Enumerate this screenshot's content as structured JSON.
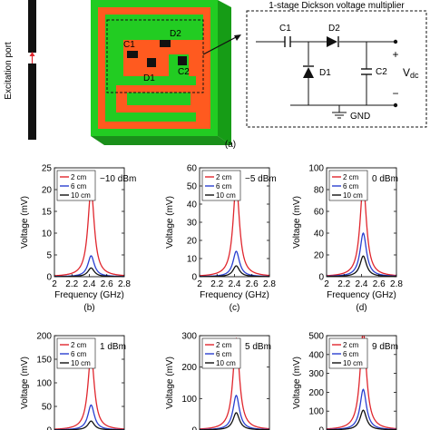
{
  "figure": {
    "top": {
      "port_label": "Excitation port",
      "panel_label": "(a)",
      "labels": {
        "c1": "C1",
        "c2": "C2",
        "d1": "D1",
        "d2": "D2"
      },
      "schematic": {
        "title": "1-stage Dickson voltage multiplier",
        "c1": "C1",
        "d2": "D2",
        "d1": "D1",
        "c2": "C2",
        "plus": "+",
        "minus": "−",
        "vdc": "V",
        "vdc_sub": "dc",
        "gnd": "GND"
      }
    },
    "colors": {
      "2cm": "#e0262d",
      "6cm": "#2a3fd0",
      "10cm": "#111111",
      "board_green": "#22cc22",
      "board_orange": "#ff5a1f"
    }
  },
  "chart_data": [
    {
      "type": "line",
      "panel": "(b)",
      "power": "−10 dBm",
      "ylabel": "Voltage (mV)",
      "xlabel": "Frequency (GHz)",
      "xlim": [
        2,
        2.8
      ],
      "ylim": [
        0,
        25
      ],
      "xticks": [
        "2",
        "2.2",
        "2.4",
        "2.6",
        "2.8"
      ],
      "yticks": [
        "0",
        "5",
        "10",
        "15",
        "20",
        "25"
      ],
      "x0": 2.42,
      "series": [
        {
          "name": "2 cm",
          "peak": 20,
          "color": "#e0262d"
        },
        {
          "name": "6 cm",
          "peak": 4.8,
          "color": "#2a3fd0"
        },
        {
          "name": "10 cm",
          "peak": 2,
          "color": "#111111"
        }
      ]
    },
    {
      "type": "line",
      "panel": "(c)",
      "power": "−5 dBm",
      "ylabel": "Voltage (mV)",
      "xlabel": "Frequency (GHz)",
      "xlim": [
        2,
        2.8
      ],
      "ylim": [
        0,
        60
      ],
      "xticks": [
        "2",
        "2.2",
        "2.4",
        "2.6",
        "2.8"
      ],
      "yticks": [
        "0",
        "10",
        "20",
        "30",
        "40",
        "50",
        "60"
      ],
      "x0": 2.42,
      "series": [
        {
          "name": "2 cm",
          "peak": 51,
          "color": "#e0262d"
        },
        {
          "name": "6 cm",
          "peak": 14,
          "color": "#2a3fd0"
        },
        {
          "name": "10 cm",
          "peak": 6,
          "color": "#111111"
        }
      ]
    },
    {
      "type": "line",
      "panel": "(d)",
      "power": "0 dBm",
      "ylabel": "Voltage (mV)",
      "xlabel": "Frequency (GHz)",
      "xlim": [
        2,
        2.8
      ],
      "ylim": [
        0,
        100
      ],
      "xticks": [
        "2",
        "2.2",
        "2.4",
        "2.6",
        "2.8"
      ],
      "yticks": [
        "0",
        "20",
        "40",
        "60",
        "80",
        "100"
      ],
      "x0": 2.42,
      "series": [
        {
          "name": "2 cm",
          "peak": 85,
          "color": "#e0262d"
        },
        {
          "name": "6 cm",
          "peak": 40,
          "color": "#2a3fd0"
        },
        {
          "name": "10 cm",
          "peak": 19,
          "color": "#111111"
        }
      ]
    },
    {
      "type": "line",
      "power": "1 dBm",
      "ylabel": "Voltage (mV)",
      "xlim": [
        2,
        2.8
      ],
      "ylim": [
        0,
        200
      ],
      "yticks": [
        "0",
        "50",
        "100",
        "150",
        "200"
      ],
      "x0": 2.42,
      "series": [
        {
          "name": "2 cm",
          "peak": 160,
          "color": "#e0262d"
        },
        {
          "name": "6 cm",
          "peak": 53,
          "color": "#2a3fd0"
        },
        {
          "name": "10 cm",
          "peak": 19,
          "color": "#111111"
        }
      ]
    },
    {
      "type": "line",
      "power": "5 dBm",
      "ylabel": "Voltage (mV)",
      "xlim": [
        2,
        2.8
      ],
      "ylim": [
        0,
        300
      ],
      "yticks": [
        "0",
        "100",
        "200",
        "300"
      ],
      "x0": 2.42,
      "series": [
        {
          "name": "2 cm",
          "peak": 290,
          "color": "#e0262d"
        },
        {
          "name": "6 cm",
          "peak": 110,
          "color": "#2a3fd0"
        },
        {
          "name": "10 cm",
          "peak": 55,
          "color": "#111111"
        }
      ]
    },
    {
      "type": "line",
      "power": "9 dBm",
      "ylabel": "Voltage (mV)",
      "xlim": [
        2,
        2.8
      ],
      "ylim": [
        0,
        500
      ],
      "yticks": [
        "0",
        "100",
        "200",
        "300",
        "400",
        "500"
      ],
      "x0": 2.42,
      "series": [
        {
          "name": "2 cm",
          "peak": 520,
          "color": "#e0262d"
        },
        {
          "name": "6 cm",
          "peak": 215,
          "color": "#2a3fd0"
        },
        {
          "name": "10 cm",
          "peak": 105,
          "color": "#111111"
        }
      ]
    }
  ]
}
